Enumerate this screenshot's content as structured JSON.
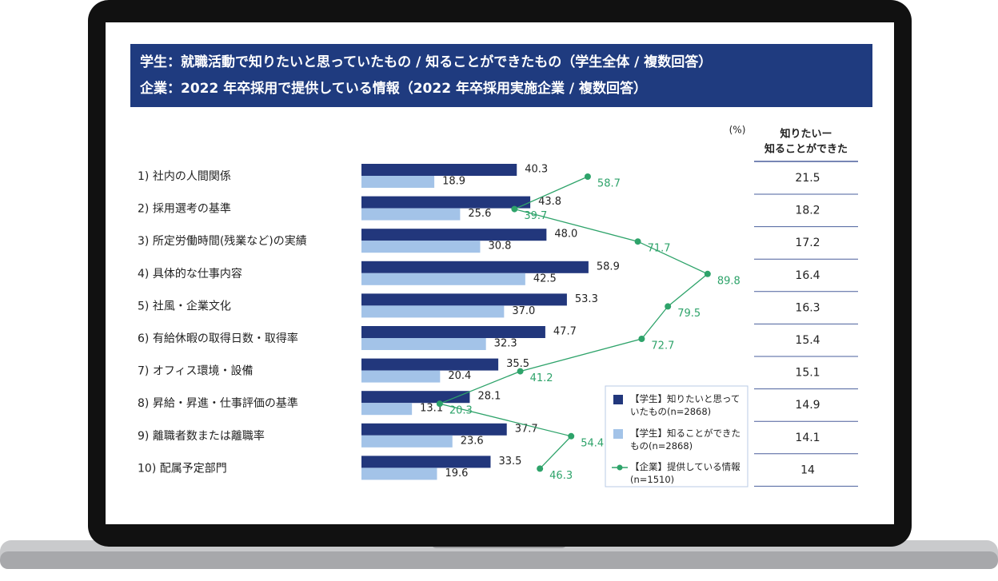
{
  "chart_data": {
    "type": "bar",
    "title": "学生：就職活動で知りたいと思っていたもの / 知ることができたもの（学生全体 / 複数回答）",
    "subtitle": "企業：2022 年卒採用で提供している情報（2022 年卒採用実施企業 / 複数回答）",
    "unit": "(%)",
    "categories": [
      "1) 社内の人間関係",
      "2) 採用選考の基準",
      "3) 所定労働時間(残業など)の実績",
      "4) 具体的な仕事内容",
      "5) 社風・企業文化",
      "6) 有給休暇の取得日数・取得率",
      "7) オフィス環境・設備",
      "8) 昇給・昇進・仕事評価の基準",
      "9) 離職者数または離職率",
      "10) 配属予定部門"
    ],
    "series": [
      {
        "name": "【学生】知りたいと思っていたもの(n=2868)",
        "color": "#22377c",
        "values": [
          40.3,
          43.8,
          48.0,
          58.9,
          53.3,
          47.7,
          35.5,
          28.1,
          37.7,
          33.5
        ],
        "value_labels": [
          "40.3",
          "43.8",
          "48.0",
          "58.9",
          "53.3",
          "47.7",
          "35.5",
          "28.1",
          "37.7",
          "33.5"
        ]
      },
      {
        "name": "【学生】知ることができたもの(n=2868)",
        "color": "#a3c3e8",
        "values": [
          18.9,
          25.6,
          30.8,
          42.5,
          37.0,
          32.3,
          20.4,
          13.1,
          23.6,
          19.6
        ],
        "value_labels": [
          "18.9",
          "25.6",
          "30.8",
          "42.5",
          "37.0",
          "32.3",
          "20.4",
          "13.1",
          "23.6",
          "19.6"
        ]
      },
      {
        "name": "【企業】提供している情報(n=1510)",
        "color": "#2ea36a",
        "type": "line",
        "values": [
          58.7,
          39.7,
          71.7,
          89.8,
          79.5,
          72.7,
          41.2,
          20.3,
          54.4,
          46.3
        ]
      }
    ],
    "table": {
      "header": [
        "知りたいー",
        "知ることができた"
      ],
      "values": [
        21.5,
        18.2,
        17.2,
        16.4,
        16.3,
        15.4,
        15.1,
        14.9,
        14.1,
        14.0
      ]
    }
  }
}
